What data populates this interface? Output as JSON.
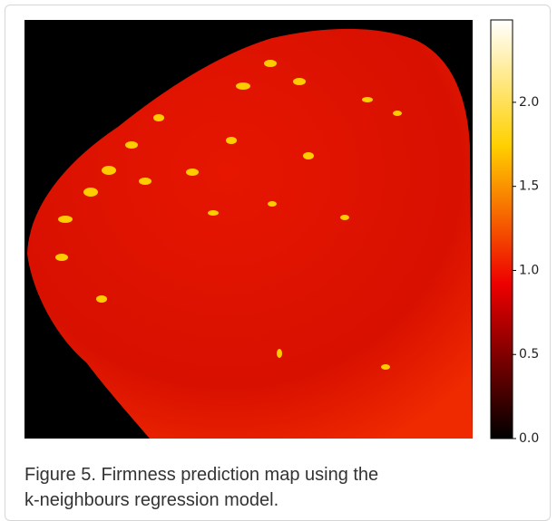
{
  "figure": {
    "colorbar": {
      "clim": [
        0,
        2.49
      ],
      "ticks": [
        {
          "value": 0,
          "label": "0.0"
        },
        0.5,
        {
          "value": 1,
          "label": "1.0"
        },
        1.5,
        {
          "value": 2,
          "label": "2.0"
        }
      ]
    },
    "caption": [
      "Figure 5. Firmness prediction map using the",
      "k-neighbours regression model."
    ]
  }
}
